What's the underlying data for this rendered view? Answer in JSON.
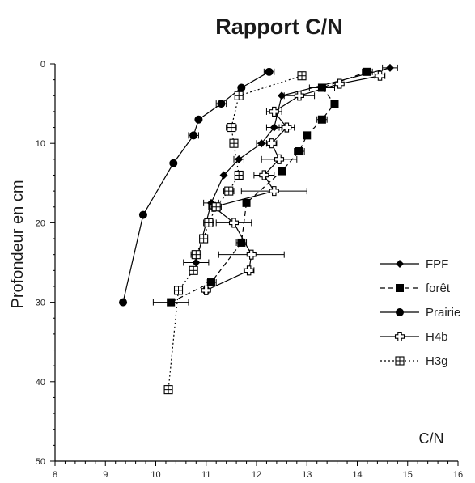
{
  "chart_data": {
    "type": "line",
    "title": "Rapport C/N",
    "xlabel": "C/N",
    "ylabel": "Profondeur en cm",
    "xlim": [
      8,
      16
    ],
    "ylim": [
      0,
      50
    ],
    "y_inverted": true,
    "x_ticks": [
      "8",
      "9",
      "10",
      "11",
      "12",
      "13",
      "14",
      "15",
      "16"
    ],
    "y_ticks": [
      "0",
      "10",
      "20",
      "30",
      "40",
      "50"
    ],
    "grid": false,
    "legend_position": "right",
    "series": [
      {
        "name": "FPF",
        "marker": "diamond",
        "line": "solid",
        "points": [
          {
            "x": 14.65,
            "y": 0.5
          },
          {
            "x": 12.5,
            "y": 4
          },
          {
            "x": 12.35,
            "y": 8
          },
          {
            "x": 12.1,
            "y": 10
          },
          {
            "x": 11.65,
            "y": 12
          },
          {
            "x": 11.35,
            "y": 14
          },
          {
            "x": 11.1,
            "y": 17.5
          },
          {
            "x": 10.8,
            "y": 25
          }
        ],
        "xerr": [
          0.15,
          0.0,
          0.15,
          0.1,
          0.1,
          0.0,
          0.15,
          0.25
        ]
      },
      {
        "name": "forêt",
        "marker": "square",
        "line": "dashed",
        "points": [
          {
            "x": 14.2,
            "y": 1
          },
          {
            "x": 13.3,
            "y": 3
          },
          {
            "x": 13.55,
            "y": 5
          },
          {
            "x": 13.3,
            "y": 7
          },
          {
            "x": 13.0,
            "y": 9
          },
          {
            "x": 12.85,
            "y": 11
          },
          {
            "x": 12.5,
            "y": 13.5
          },
          {
            "x": 11.8,
            "y": 17.5
          },
          {
            "x": 11.7,
            "y": 22.5
          },
          {
            "x": 11.1,
            "y": 27.5
          },
          {
            "x": 10.3,
            "y": 30
          }
        ],
        "xerr": [
          0.1,
          0.25,
          0.0,
          0.1,
          0.0,
          0.1,
          0.0,
          0.0,
          0.1,
          0.1,
          0.35
        ]
      },
      {
        "name": "Prairie",
        "marker": "circle",
        "line": "solid",
        "points": [
          {
            "x": 12.25,
            "y": 1
          },
          {
            "x": 11.7,
            "y": 3
          },
          {
            "x": 11.3,
            "y": 5
          },
          {
            "x": 10.85,
            "y": 7
          },
          {
            "x": 10.75,
            "y": 9
          },
          {
            "x": 10.35,
            "y": 12.5
          },
          {
            "x": 9.75,
            "y": 19
          },
          {
            "x": 9.35,
            "y": 30
          }
        ],
        "xerr": [
          0.1,
          0.0,
          0.1,
          0.0,
          0.1,
          0.0,
          0.0,
          0.0
        ]
      },
      {
        "name": "H4b",
        "marker": "open-plus",
        "line": "solid",
        "points": [
          {
            "x": 14.45,
            "y": 1.5
          },
          {
            "x": 13.65,
            "y": 2.5
          },
          {
            "x": 12.85,
            "y": 4
          },
          {
            "x": 12.35,
            "y": 6
          },
          {
            "x": 12.6,
            "y": 8
          },
          {
            "x": 12.3,
            "y": 10
          },
          {
            "x": 12.45,
            "y": 12
          },
          {
            "x": 12.15,
            "y": 14
          },
          {
            "x": 12.35,
            "y": 16
          },
          {
            "x": 11.15,
            "y": 18
          },
          {
            "x": 11.55,
            "y": 20
          },
          {
            "x": 11.9,
            "y": 24
          },
          {
            "x": 11.85,
            "y": 26
          },
          {
            "x": 11.0,
            "y": 28.5
          }
        ],
        "xerr": [
          0.1,
          0.0,
          0.3,
          0.15,
          0.15,
          0.1,
          0.35,
          0.2,
          0.65,
          0.1,
          0.35,
          0.65,
          0.1,
          0.05
        ]
      },
      {
        "name": "H3g",
        "marker": "boxed-plus",
        "line": "dotted",
        "points": [
          {
            "x": 12.9,
            "y": 1.5
          },
          {
            "x": 11.65,
            "y": 4
          },
          {
            "x": 11.5,
            "y": 8
          },
          {
            "x": 11.55,
            "y": 10
          },
          {
            "x": 11.65,
            "y": 14
          },
          {
            "x": 11.45,
            "y": 16
          },
          {
            "x": 11.2,
            "y": 18
          },
          {
            "x": 11.05,
            "y": 20
          },
          {
            "x": 10.95,
            "y": 22
          },
          {
            "x": 10.8,
            "y": 24
          },
          {
            "x": 10.75,
            "y": 26
          },
          {
            "x": 10.45,
            "y": 28.5
          },
          {
            "x": 10.25,
            "y": 41
          }
        ],
        "xerr": [
          0.0,
          0.0,
          0.1,
          0.0,
          0.0,
          0.1,
          0.1,
          0.1,
          0.0,
          0.1,
          0.0,
          0.05,
          0.05
        ]
      }
    ]
  }
}
